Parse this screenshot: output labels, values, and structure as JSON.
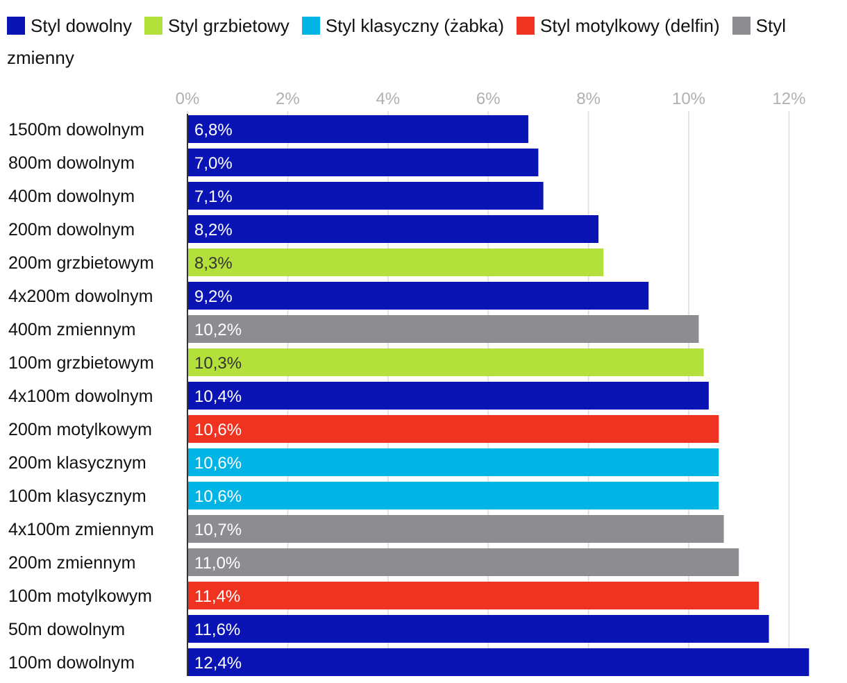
{
  "chart_data": {
    "type": "bar",
    "orientation": "horizontal",
    "title": "",
    "xlabel": "",
    "ylabel": "",
    "xlim": [
      0,
      12
    ],
    "x_ticks": [
      "0%",
      "2%",
      "4%",
      "6%",
      "8%",
      "10%",
      "12%"
    ],
    "grid": "vertical",
    "legend": {
      "placement": "top",
      "entries": [
        {
          "name": "Styl dowolny",
          "color": "#0a14b4"
        },
        {
          "name": "Styl grzbietowy",
          "color": "#b4e03c"
        },
        {
          "name": "Styl klasyczny (żabka)",
          "color": "#00b4e6"
        },
        {
          "name": "Styl motylkowy (delfin)",
          "color": "#f03220"
        },
        {
          "name": "Styl zmienny",
          "color": "#8c8c91"
        }
      ]
    },
    "categories": [
      "1500m dowolnym",
      "800m dowolnym",
      "400m dowolnym",
      "200m dowolnym",
      "200m grzbietowym",
      "4x200m dowolnym",
      "400m zmiennym",
      "100m grzbietowym",
      "4x100m dowolnym",
      "200m motylkowym",
      "200m klasycznym",
      "100m klasycznym",
      "4x100m zmiennym",
      "200m zmiennym",
      "100m motylkowym",
      "50m dowolnym",
      "100m dowolnym"
    ],
    "values": [
      6.8,
      7.0,
      7.1,
      8.2,
      8.3,
      9.2,
      10.2,
      10.3,
      10.4,
      10.6,
      10.6,
      10.6,
      10.7,
      11.0,
      11.4,
      11.6,
      12.4
    ],
    "value_labels": [
      "6,8%",
      "7,0%",
      "7,1%",
      "8,2%",
      "8,3%",
      "9,2%",
      "10,2%",
      "10,3%",
      "10,4%",
      "10,6%",
      "10,6%",
      "10,6%",
      "10,7%",
      "11,0%",
      "11,4%",
      "11,6%",
      "12,4%"
    ],
    "series_index": [
      0,
      0,
      0,
      0,
      1,
      0,
      4,
      1,
      0,
      3,
      2,
      2,
      4,
      4,
      3,
      0,
      0
    ],
    "label_colors": [
      "#ffffff",
      "#333333",
      "#ffffff",
      "#ffffff",
      "#ffffff"
    ]
  }
}
